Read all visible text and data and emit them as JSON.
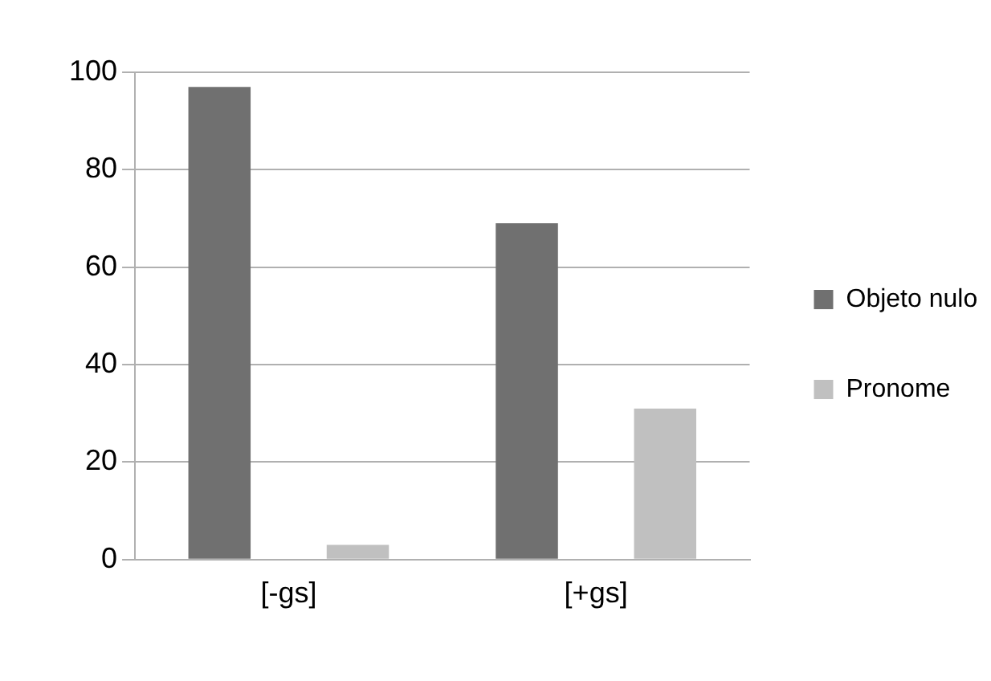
{
  "chart_data": {
    "type": "bar",
    "categories": [
      "[-gs]",
      "[+gs]"
    ],
    "series": [
      {
        "name": "Objeto nulo",
        "color": "#707070",
        "values": [
          97,
          69
        ]
      },
      {
        "name": "Pronome",
        "color": "#c0c0c0",
        "values": [
          3,
          31
        ]
      }
    ],
    "ylim": [
      0,
      100
    ],
    "yticks": [
      0,
      20,
      40,
      60,
      80,
      100
    ],
    "grid": "y",
    "legend": "right"
  }
}
